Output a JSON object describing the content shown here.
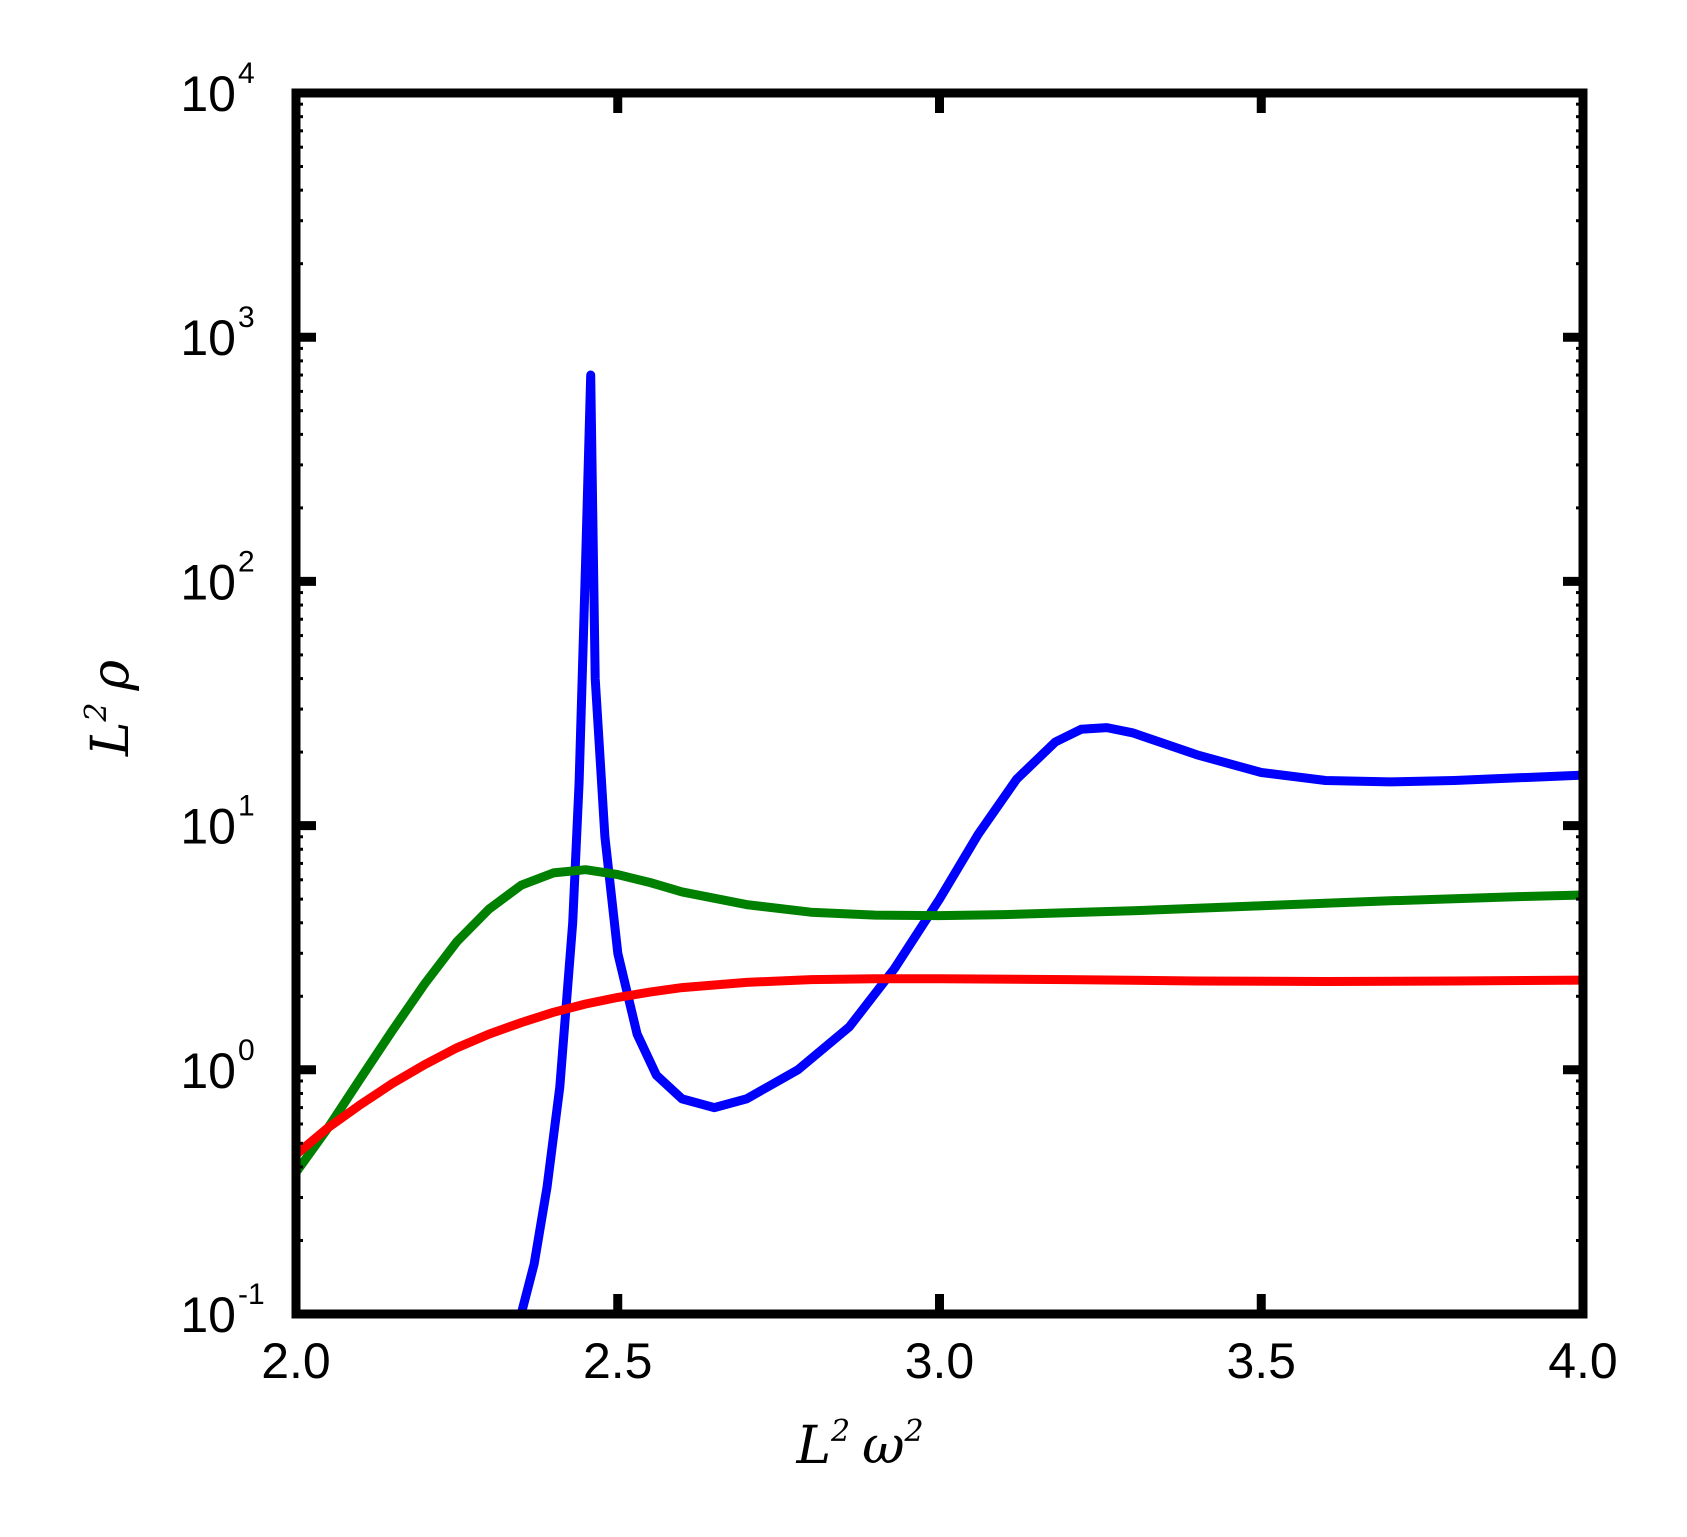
{
  "chart_data": {
    "type": "line",
    "xlabel": "L² ω²",
    "xlabel_parts": {
      "L": "L",
      "sup1": "2",
      "w": "ω",
      "sup2": "2"
    },
    "ylabel": "L² ρ",
    "ylabel_parts": {
      "L": "L",
      "sup": "2",
      "rho": "ρ"
    },
    "xlim": [
      2.0,
      4.0
    ],
    "ylim": [
      0.1,
      10000
    ],
    "yscale": "log",
    "grid": false,
    "legend": "none",
    "x_ticks": [
      2.0,
      2.5,
      3.0,
      3.5,
      4.0
    ],
    "x_tick_labels": [
      "2.0",
      "2.5",
      "3.0",
      "3.5",
      "4.0"
    ],
    "y_ticks": [
      {
        "value": 0.1,
        "base": "10",
        "exp": "-1"
      },
      {
        "value": 1,
        "base": "10",
        "exp": "0"
      },
      {
        "value": 10,
        "base": "10",
        "exp": "1"
      },
      {
        "value": 100,
        "base": "10",
        "exp": "2"
      },
      {
        "value": 1000,
        "base": "10",
        "exp": "3"
      },
      {
        "value": 10000,
        "base": "10",
        "exp": "4"
      }
    ],
    "series": [
      {
        "color": "#0000ff",
        "points": [
          [
            2.35,
            0.1
          ],
          [
            2.37,
            0.16
          ],
          [
            2.39,
            0.33
          ],
          [
            2.41,
            0.85
          ],
          [
            2.43,
            4.0
          ],
          [
            2.44,
            15.0
          ],
          [
            2.45,
            120
          ],
          [
            2.458,
            700
          ],
          [
            2.465,
            40
          ],
          [
            2.48,
            9.0
          ],
          [
            2.5,
            3.0
          ],
          [
            2.53,
            1.4
          ],
          [
            2.56,
            0.95
          ],
          [
            2.6,
            0.76
          ],
          [
            2.65,
            0.7
          ],
          [
            2.7,
            0.76
          ],
          [
            2.78,
            1.0
          ],
          [
            2.86,
            1.5
          ],
          [
            2.93,
            2.6
          ],
          [
            3.0,
            5.0
          ],
          [
            3.06,
            9.2
          ],
          [
            3.12,
            15.5
          ],
          [
            3.18,
            22.0
          ],
          [
            3.22,
            24.8
          ],
          [
            3.26,
            25.2
          ],
          [
            3.3,
            24.0
          ],
          [
            3.4,
            19.5
          ],
          [
            3.5,
            16.5
          ],
          [
            3.6,
            15.3
          ],
          [
            3.7,
            15.1
          ],
          [
            3.8,
            15.3
          ],
          [
            3.9,
            15.7
          ],
          [
            4.0,
            16.1
          ]
        ]
      },
      {
        "color": "#008000",
        "points": [
          [
            2.0,
            0.38
          ],
          [
            2.05,
            0.58
          ],
          [
            2.1,
            0.92
          ],
          [
            2.15,
            1.45
          ],
          [
            2.2,
            2.25
          ],
          [
            2.25,
            3.35
          ],
          [
            2.3,
            4.55
          ],
          [
            2.35,
            5.7
          ],
          [
            2.4,
            6.4
          ],
          [
            2.45,
            6.6
          ],
          [
            2.5,
            6.3
          ],
          [
            2.55,
            5.85
          ],
          [
            2.6,
            5.35
          ],
          [
            2.7,
            4.75
          ],
          [
            2.8,
            4.42
          ],
          [
            2.9,
            4.3
          ],
          [
            3.0,
            4.28
          ],
          [
            3.1,
            4.32
          ],
          [
            3.3,
            4.48
          ],
          [
            3.5,
            4.7
          ],
          [
            3.7,
            4.92
          ],
          [
            3.9,
            5.12
          ],
          [
            4.0,
            5.2
          ]
        ]
      },
      {
        "color": "#ff0000",
        "points": [
          [
            2.0,
            0.45
          ],
          [
            2.05,
            0.58
          ],
          [
            2.1,
            0.72
          ],
          [
            2.15,
            0.88
          ],
          [
            2.2,
            1.05
          ],
          [
            2.25,
            1.23
          ],
          [
            2.3,
            1.4
          ],
          [
            2.35,
            1.56
          ],
          [
            2.4,
            1.72
          ],
          [
            2.45,
            1.86
          ],
          [
            2.5,
            1.98
          ],
          [
            2.55,
            2.08
          ],
          [
            2.6,
            2.17
          ],
          [
            2.7,
            2.28
          ],
          [
            2.8,
            2.34
          ],
          [
            2.9,
            2.36
          ],
          [
            3.0,
            2.36
          ],
          [
            3.2,
            2.34
          ],
          [
            3.4,
            2.31
          ],
          [
            3.6,
            2.3
          ],
          [
            3.8,
            2.31
          ],
          [
            4.0,
            2.33
          ]
        ]
      }
    ]
  }
}
